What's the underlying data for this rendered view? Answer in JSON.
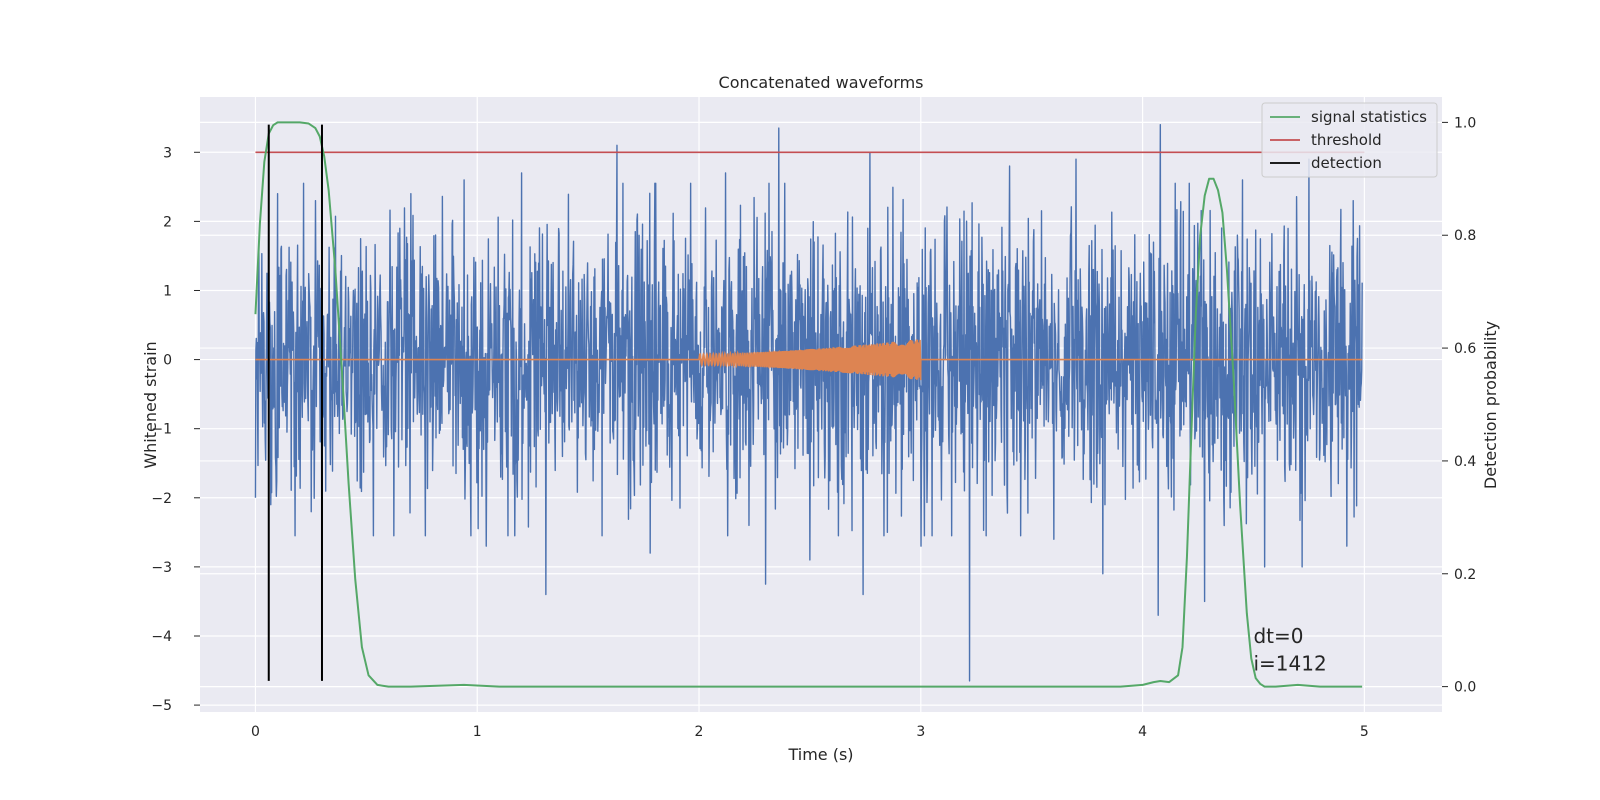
{
  "chart_data": {
    "type": "line",
    "title": "Concatenated waveforms",
    "xlabel": "Time (s)",
    "ylabel": "Whitened strain",
    "ylabel_right": "Detection probability",
    "xlim": [
      -0.25,
      5.35
    ],
    "ylim": [
      -5.1,
      3.8
    ],
    "ylim_right": [
      -0.045,
      1.045
    ],
    "xticks": [
      0,
      1,
      2,
      3,
      4,
      5
    ],
    "xtick_labels": [
      "0",
      "1",
      "2",
      "3",
      "4",
      "5"
    ],
    "yticks": [
      -5,
      -4,
      -3,
      -2,
      -1,
      0,
      1,
      2,
      3
    ],
    "ytick_labels": [
      "−5",
      "−4",
      "−3",
      "−2",
      "−1",
      "0",
      "1",
      "2",
      "3"
    ],
    "yticks_right": [
      0.0,
      0.2,
      0.4,
      0.6,
      0.8,
      1.0
    ],
    "ytick_labels_right": [
      "0.0",
      "0.2",
      "0.4",
      "0.6",
      "0.8",
      "1.0"
    ],
    "grid": true,
    "legend_position": "top-right",
    "legend": [
      {
        "label": "signal statistics",
        "color": "#55a868"
      },
      {
        "label": "threshold",
        "color": "#c44e52"
      },
      {
        "label": "detection",
        "color": "#000000"
      }
    ],
    "series": [
      {
        "kind": "noise",
        "color": "#4c72b0",
        "x_range": [
          0,
          4.99
        ],
        "amplitude_typical": 1.3,
        "spikes": [
          [
            0.0,
            -2.0
          ],
          [
            0.07,
            -2.1
          ],
          [
            0.1,
            2.4
          ],
          [
            0.27,
            2.3
          ],
          [
            0.3,
            -2.9
          ],
          [
            0.7,
            2.4
          ],
          [
            0.94,
            2.6
          ],
          [
            1.04,
            -2.7
          ],
          [
            1.2,
            2.7
          ],
          [
            1.31,
            -3.4
          ],
          [
            1.63,
            3.1
          ],
          [
            1.78,
            -2.8
          ],
          [
            2.12,
            2.7
          ],
          [
            2.36,
            3.35
          ],
          [
            2.3,
            -3.25
          ],
          [
            2.5,
            -2.9
          ],
          [
            2.74,
            -3.4
          ],
          [
            2.77,
            3.0
          ],
          [
            2.85,
            -2.5
          ],
          [
            3.0,
            -2.7
          ],
          [
            3.22,
            -4.65
          ],
          [
            3.4,
            2.8
          ],
          [
            3.6,
            -2.6
          ],
          [
            3.7,
            2.9
          ],
          [
            3.82,
            -3.1
          ],
          [
            4.08,
            3.4
          ],
          [
            4.07,
            -3.7
          ],
          [
            4.28,
            -3.5
          ],
          [
            4.45,
            2.6
          ],
          [
            4.55,
            -3.0
          ],
          [
            4.72,
            -3.0
          ],
          [
            4.75,
            2.9
          ],
          [
            4.92,
            -2.7
          ],
          [
            4.95,
            2.3
          ]
        ]
      },
      {
        "kind": "chirp",
        "color": "#dd8452",
        "x_range": [
          2.0,
          3.0
        ],
        "amplitude_start": 0.08,
        "amplitude_end": 0.3,
        "baseline": 0.0
      },
      {
        "name": "signal statistics",
        "axis": "right",
        "color": "#55a868",
        "x": [
          0.0,
          0.02,
          0.04,
          0.06,
          0.08,
          0.1,
          0.13,
          0.16,
          0.2,
          0.24,
          0.27,
          0.29,
          0.31,
          0.33,
          0.36,
          0.39,
          0.42,
          0.45,
          0.48,
          0.51,
          0.55,
          0.6,
          0.7,
          0.94,
          1.1,
          2.0,
          3.0,
          3.9,
          4.0,
          4.05,
          4.08,
          4.12,
          4.16,
          4.18,
          4.2,
          4.22,
          4.24,
          4.26,
          4.28,
          4.3,
          4.32,
          4.34,
          4.36,
          4.38,
          4.41,
          4.44,
          4.47,
          4.49,
          4.51,
          4.53,
          4.55,
          4.6,
          4.7,
          4.8,
          4.99
        ],
        "y": [
          0.66,
          0.82,
          0.93,
          0.98,
          0.995,
          1.0,
          1.0,
          1.0,
          1.0,
          0.998,
          0.99,
          0.975,
          0.94,
          0.88,
          0.74,
          0.56,
          0.36,
          0.19,
          0.07,
          0.02,
          0.003,
          0.0,
          0.0,
          0.003,
          0.0,
          0.0,
          0.0,
          0.0,
          0.003,
          0.008,
          0.01,
          0.008,
          0.02,
          0.07,
          0.23,
          0.45,
          0.66,
          0.8,
          0.87,
          0.9,
          0.9,
          0.88,
          0.84,
          0.74,
          0.55,
          0.32,
          0.13,
          0.05,
          0.015,
          0.005,
          0.0,
          0.0,
          0.003,
          0.0,
          0.0
        ]
      },
      {
        "name": "threshold",
        "color": "#c44e52",
        "x": [
          0.0,
          5.0
        ],
        "y": [
          3.0,
          3.0
        ]
      },
      {
        "name": "detection",
        "color": "#000000",
        "kind": "vlines",
        "x": [
          0.06,
          0.3
        ],
        "y_range": [
          -4.65,
          3.4
        ]
      }
    ],
    "annotations": [
      {
        "text": "dt=0",
        "x": 4.5,
        "y": -4.0
      },
      {
        "text": "i=1412",
        "x": 4.5,
        "y": -4.4
      }
    ]
  }
}
